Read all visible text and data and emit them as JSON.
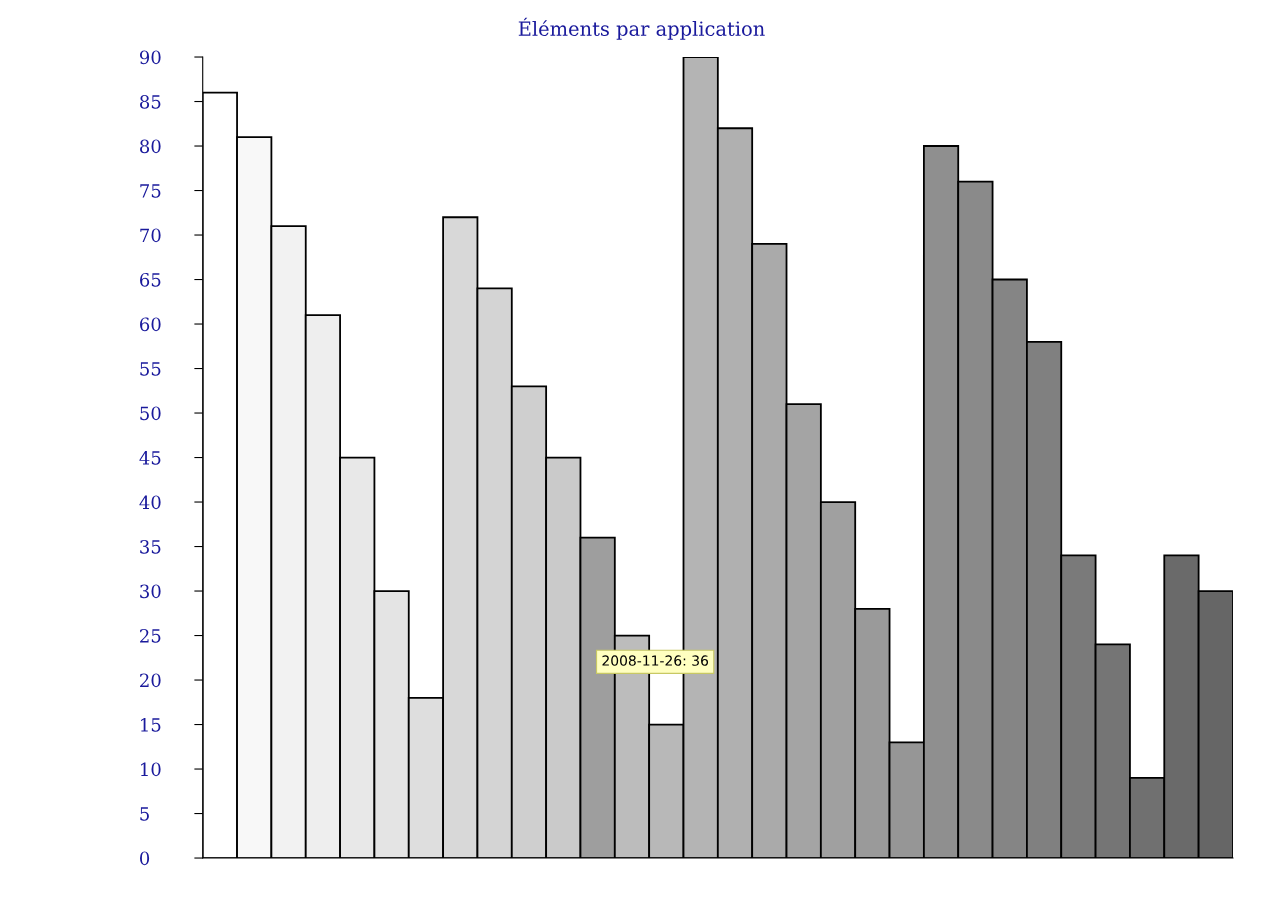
{
  "chart_data": {
    "type": "bar",
    "title": "Éléments par application",
    "categories": [
      null,
      null,
      null,
      null,
      null,
      null,
      null,
      null,
      null,
      null,
      null,
      null,
      null,
      null,
      null,
      null,
      null,
      null,
      null,
      null,
      null,
      null,
      null,
      null,
      null,
      null,
      null,
      null,
      null,
      null
    ],
    "values": [
      86,
      81,
      71,
      61,
      45,
      30,
      18,
      72,
      64,
      53,
      45,
      36,
      25,
      15,
      90,
      82,
      69,
      51,
      40,
      28,
      13,
      80,
      76,
      65,
      58,
      34,
      24,
      9,
      34,
      30
    ],
    "colors": [
      "#ffffff",
      "#f8f8f8",
      "#f2f2f2",
      "#eeeeee",
      "#e8e8e8",
      "#e4e4e4",
      "#dedede",
      "#d8d8d8",
      "#d4d4d4",
      "#cfcfcf",
      "#cacaca",
      "#9e9e9e",
      "#bcbcbc",
      "#b8b8b8",
      "#b4b4b4",
      "#b0b0b0",
      "#aaaaaa",
      "#a4a4a4",
      "#a0a0a0",
      "#9a9a9a",
      "#969696",
      "#8f8f8f",
      "#8a8a8a",
      "#858585",
      "#808080",
      "#7a7a7a",
      "#757575",
      "#707070",
      "#6a6a6a",
      "#666666"
    ],
    "ylim": [
      0,
      90
    ],
    "yticks": [
      0,
      5,
      10,
      15,
      20,
      25,
      30,
      35,
      40,
      45,
      50,
      55,
      60,
      65,
      70,
      75,
      80,
      85,
      90
    ],
    "tick_labels": "y",
    "grid": false,
    "legend": false,
    "annotations": [
      "2008-11-26: 36"
    ]
  }
}
